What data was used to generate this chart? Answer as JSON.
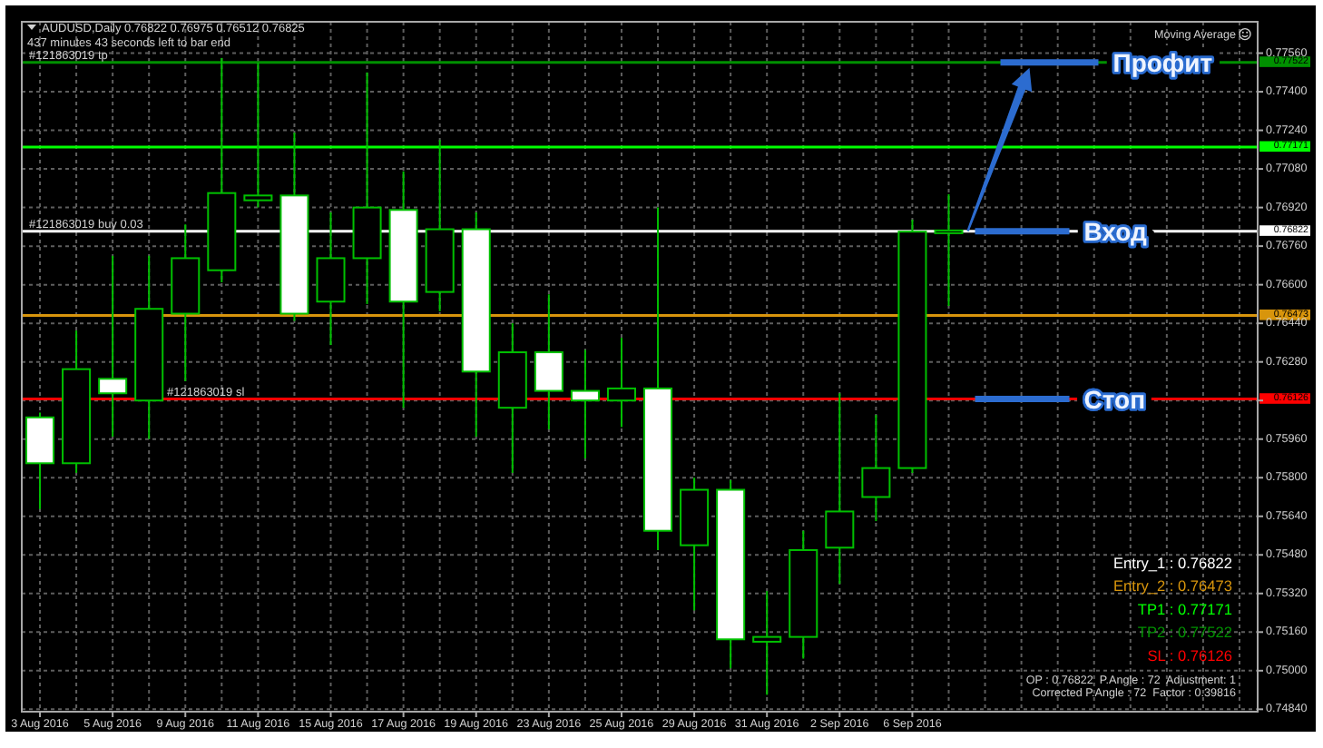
{
  "chart_data": {
    "type": "candlestick",
    "title": "AUDUSD,Daily 0.76822 0.76975 0.76512 0.76825",
    "subtitle": "437 minutes 43 seconds left to bar end",
    "categories": [
      "3 Aug 2016",
      null,
      "5 Aug 2016",
      null,
      "9 Aug 2016",
      null,
      "11 Aug 2016",
      null,
      "15 Aug 2016",
      null,
      "17 Aug 2016",
      null,
      "19 Aug 2016",
      null,
      "23 Aug 2016",
      null,
      "25 Aug 2016",
      null,
      "29 Aug 2016",
      null,
      "31 Aug 2016",
      null,
      "2 Sep 2016",
      null,
      "6 Sep 2016",
      null,
      null,
      null,
      null,
      null,
      null,
      null,
      null,
      null
    ],
    "ohlc": [
      [
        0.7605,
        0.7607,
        0.7567,
        0.7586
      ],
      [
        0.7586,
        0.7641,
        0.7582,
        0.7625
      ],
      [
        0.7621,
        0.7672,
        0.7597,
        0.7615
      ],
      [
        0.7612,
        0.7672,
        0.7596,
        0.765
      ],
      [
        0.7648,
        0.7685,
        0.762,
        0.7671
      ],
      [
        0.7666,
        0.7754,
        0.7661,
        0.7698
      ],
      [
        0.7695,
        0.7752,
        0.7692,
        0.7697
      ],
      [
        0.7697,
        0.7723,
        0.7645,
        0.7648
      ],
      [
        0.7653,
        0.769,
        0.7635,
        0.7671
      ],
      [
        0.7671,
        0.7748,
        0.7652,
        0.7692
      ],
      [
        0.7691,
        0.7707,
        0.7609,
        0.7653
      ],
      [
        0.7657,
        0.772,
        0.7649,
        0.7683
      ],
      [
        0.7683,
        0.769,
        0.7597,
        0.7624
      ],
      [
        0.7609,
        0.7644,
        0.7582,
        0.7632
      ],
      [
        0.7632,
        0.7656,
        0.76,
        0.7616
      ],
      [
        0.7616,
        0.7633,
        0.7588,
        0.7612
      ],
      [
        0.7612,
        0.7638,
        0.7601,
        0.7617
      ],
      [
        0.7617,
        0.7692,
        0.755,
        0.7558
      ],
      [
        0.7552,
        0.758,
        0.7525,
        0.7575
      ],
      [
        0.7575,
        0.7579,
        0.7501,
        0.7513
      ],
      [
        0.7512,
        0.7533,
        0.749,
        0.7514
      ],
      [
        0.7514,
        0.7558,
        0.7505,
        0.755
      ],
      [
        0.7551,
        0.7615,
        0.7536,
        0.7566
      ],
      [
        0.7572,
        0.7606,
        0.7562,
        0.7584
      ],
      [
        0.7584,
        0.7687,
        0.7582,
        0.7682
      ],
      [
        0.76822,
        0.76975,
        0.76512,
        0.76825
      ],
      null,
      null,
      null,
      null,
      null,
      null,
      null,
      null
    ],
    "colors": [
      "#ffffff",
      "#000000",
      "#ffffff",
      "#000000",
      "#000000",
      "#000000",
      "#000000",
      "#ffffff",
      "#000000",
      "#000000",
      "#ffffff",
      "#000000",
      "#ffffff",
      "#000000",
      "#ffffff",
      "#ffffff",
      "#000000",
      "#ffffff",
      "#000000",
      "#ffffff",
      "#000000",
      "#000000",
      "#000000",
      "#000000",
      "#000000",
      "#000000",
      null,
      null,
      null,
      null,
      null,
      null,
      null,
      null
    ],
    "color": "#00c000",
    "ylim": [
      0.7483,
      0.7769
    ],
    "yticks": [
      {
        "value": 0.7484,
        "label": "0.74840"
      },
      {
        "value": 0.75,
        "label": "0.75000"
      },
      {
        "value": 0.7516,
        "label": "0.75160"
      },
      {
        "value": 0.7532,
        "label": "0.75320"
      },
      {
        "value": 0.7548,
        "label": "0.75480"
      },
      {
        "value": 0.7564,
        "label": "0.75640"
      },
      {
        "value": 0.758,
        "label": "0.75800"
      },
      {
        "value": 0.7596,
        "label": "0.75960"
      },
      {
        "value": 0.7612,
        "label": null
      },
      {
        "value": 0.7628,
        "label": "0.76280"
      },
      {
        "value": 0.7644,
        "label": "0.76440"
      },
      {
        "value": 0.766,
        "label": "0.76600"
      },
      {
        "value": 0.7676,
        "label": "0.76760"
      },
      {
        "value": 0.7692,
        "label": "0.76920"
      },
      {
        "value": 0.7708,
        "label": "0.77080"
      },
      {
        "value": 0.7724,
        "label": "0.77240"
      },
      {
        "value": 0.774,
        "label": "0.77400"
      },
      {
        "value": 0.7756,
        "label": "0.77560"
      }
    ],
    "grid": true,
    "ref_lines": [
      {
        "axis": "y",
        "value": 0.76822,
        "label": "0.76822",
        "color": "#ffffff"
      },
      {
        "axis": "y",
        "value": 0.76473,
        "label": "0.76473",
        "color": "#d8950c"
      },
      {
        "axis": "y",
        "value": 0.77171,
        "label": "0.77171",
        "color": "#00ff00"
      },
      {
        "axis": "y",
        "value": 0.77522,
        "label": "0.77522",
        "color": "#009000"
      },
      {
        "axis": "y",
        "value": 0.76126,
        "label": "0.76126",
        "color": "#ff0000"
      }
    ],
    "annotations": [
      "Moving Average",
      "Entry_1 : 0.76822",
      "Entry_2 : 0.76473",
      "TP1 : 0.77171",
      "TP2 : 0.77522",
      "SL : 0.76126",
      "OP : 0.76822  P.Angle : 72  Adjustment: 1",
      "Corrected P.Angle : 72  Factor : 0.39816",
      {
        "text": "#121863019 tp",
        "y": 0.77522
      },
      {
        "text": "#121863019 buy 0.03",
        "y": 0.76822
      },
      {
        "text": "#121863019 sl",
        "y": 0.76126
      },
      {
        "text": "Профит",
        "y": 0.77522
      },
      {
        "text": "Вход",
        "y": 0.76822
      },
      {
        "text": "Стоп",
        "y": 0.76126
      }
    ]
  }
}
